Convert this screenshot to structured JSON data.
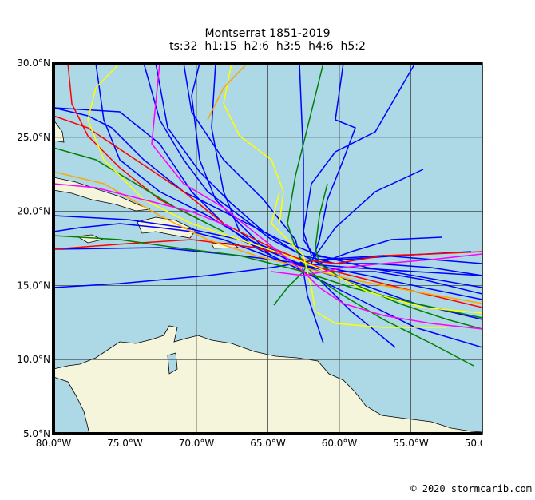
{
  "header": {
    "title": "Montserrat 1851-2019",
    "subtitle": "ts:32  h1:15  h2:6  h3:5  h4:6  h5:2"
  },
  "map": {
    "lat_labels": [
      "30.0°N",
      "25.0°N",
      "20.0°N",
      "15.0°N",
      "10.0°N",
      "5.0°N"
    ],
    "lon_labels": [
      "80.0°W",
      "75.0°W",
      "70.0°W",
      "65.0°W",
      "60.0°W",
      "55.0°W",
      "50.0°W"
    ]
  },
  "footer": {
    "credit": "© 2020 stormcarib.com"
  }
}
